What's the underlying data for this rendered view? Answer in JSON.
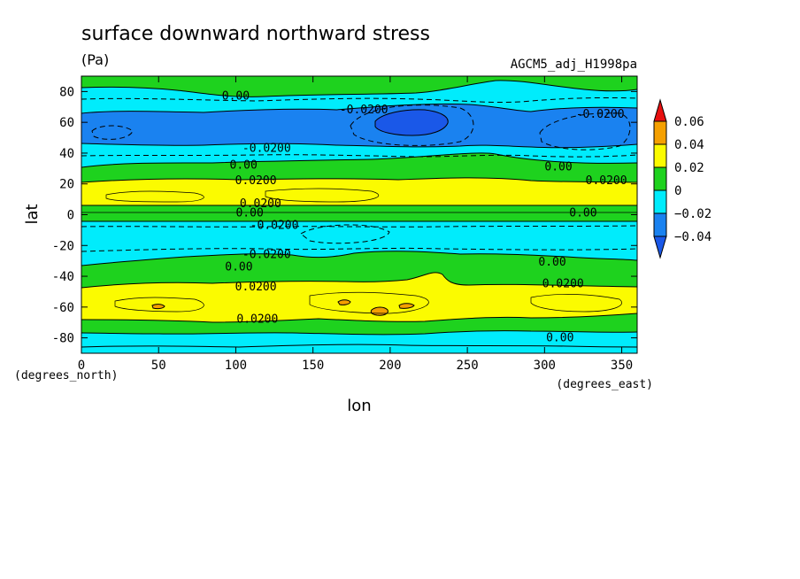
{
  "chart_data": {
    "type": "heatmap",
    "title": "surface downward northward stress",
    "units": "(Pa)",
    "run_label": "AGCM5_adj_H1998pa",
    "xlabel": "lon",
    "ylabel": "lat",
    "x_units": "(degrees_east)",
    "y_units": "(degrees_north)",
    "xlim": [
      0,
      360
    ],
    "ylim": [
      -90,
      90
    ],
    "x_ticks": [
      0,
      50,
      100,
      150,
      200,
      250,
      300,
      350
    ],
    "y_ticks": [
      80,
      60,
      40,
      20,
      0,
      -20,
      -40,
      -60,
      -80
    ],
    "colorbar": {
      "levels": [
        -0.04,
        -0.02,
        0,
        0.02,
        0.04,
        0.06
      ],
      "colors": [
        "#1a82f0",
        "#00ecfc",
        "#1ed21e",
        "#fbfb00",
        "#f5a000"
      ],
      "extend_low_color": "#1a58e8",
      "extend_high_color": "#e81010",
      "labels": [
        "0.06",
        "0.04",
        "0.02",
        "0",
        "−0.02",
        "−0.04"
      ]
    },
    "contour_labels": [
      {
        "text": "0.00",
        "lon": 100,
        "lat": 76
      },
      {
        "text": "-0.0200",
        "lon": 183,
        "lat": 67
      },
      {
        "text": "-0.0200",
        "lon": 336,
        "lat": 64
      },
      {
        "text": "-0.0200",
        "lon": 120,
        "lat": 42
      },
      {
        "text": "0.00",
        "lon": 105,
        "lat": 31
      },
      {
        "text": "0.00",
        "lon": 309,
        "lat": 30
      },
      {
        "text": "0.0200",
        "lon": 113,
        "lat": 21
      },
      {
        "text": "0.0200",
        "lon": 340,
        "lat": 21
      },
      {
        "text": "0.0200",
        "lon": 116,
        "lat": 6
      },
      {
        "text": "0.00",
        "lon": 109,
        "lat": 0
      },
      {
        "text": "0.00",
        "lon": 325,
        "lat": 0
      },
      {
        "text": "-0.0200",
        "lon": 125,
        "lat": -8
      },
      {
        "text": "-0.0200",
        "lon": 120,
        "lat": -27
      },
      {
        "text": "0.00",
        "lon": 102,
        "lat": -35
      },
      {
        "text": "0.00",
        "lon": 305,
        "lat": -32
      },
      {
        "text": "0.0200",
        "lon": 113,
        "lat": -48
      },
      {
        "text": "0.0200",
        "lon": 312,
        "lat": -46
      },
      {
        "text": "0.0200",
        "lon": 114,
        "lat": -69
      },
      {
        "text": "0.00",
        "lon": 310,
        "lat": -81
      }
    ],
    "bands_by_lat": [
      {
        "lat_max": 90,
        "lat_min": 82,
        "value": "0 to 0.02"
      },
      {
        "lat_max": 82,
        "lat_min": 74,
        "value": "-0.02 to 0"
      },
      {
        "lat_max": 72,
        "lat_min": 44,
        "value": "-0.04 to -0.02"
      },
      {
        "lat_max": 44,
        "lat_min": 36,
        "value": "-0.02 to 0"
      },
      {
        "lat_max": 34,
        "lat_min": 22,
        "value": "0 to 0.02"
      },
      {
        "lat_max": 20,
        "lat_min": 6,
        "value": "0.02 to 0.04"
      },
      {
        "lat_max": 6,
        "lat_min": -4,
        "value": "0 to 0.02"
      },
      {
        "lat_max": -4,
        "lat_min": -28,
        "value": "-0.02 to 0"
      },
      {
        "lat_max": -30,
        "lat_min": -46,
        "value": "0 to 0.02"
      },
      {
        "lat_max": -46,
        "lat_min": -68,
        "value": "0.02 to 0.04"
      },
      {
        "lat_max": -68,
        "lat_min": -82,
        "value": "0 to 0.02"
      },
      {
        "lat_max": -84,
        "lat_min": -90,
        "value": "-0.02 to 0"
      }
    ],
    "extrema": [
      {
        "label": "min",
        "lon": 210,
        "lat": 58,
        "value": "< -0.04"
      },
      {
        "label": "max",
        "lon": 190,
        "lat": -62,
        "value": "0.04 to 0.06"
      }
    ]
  }
}
